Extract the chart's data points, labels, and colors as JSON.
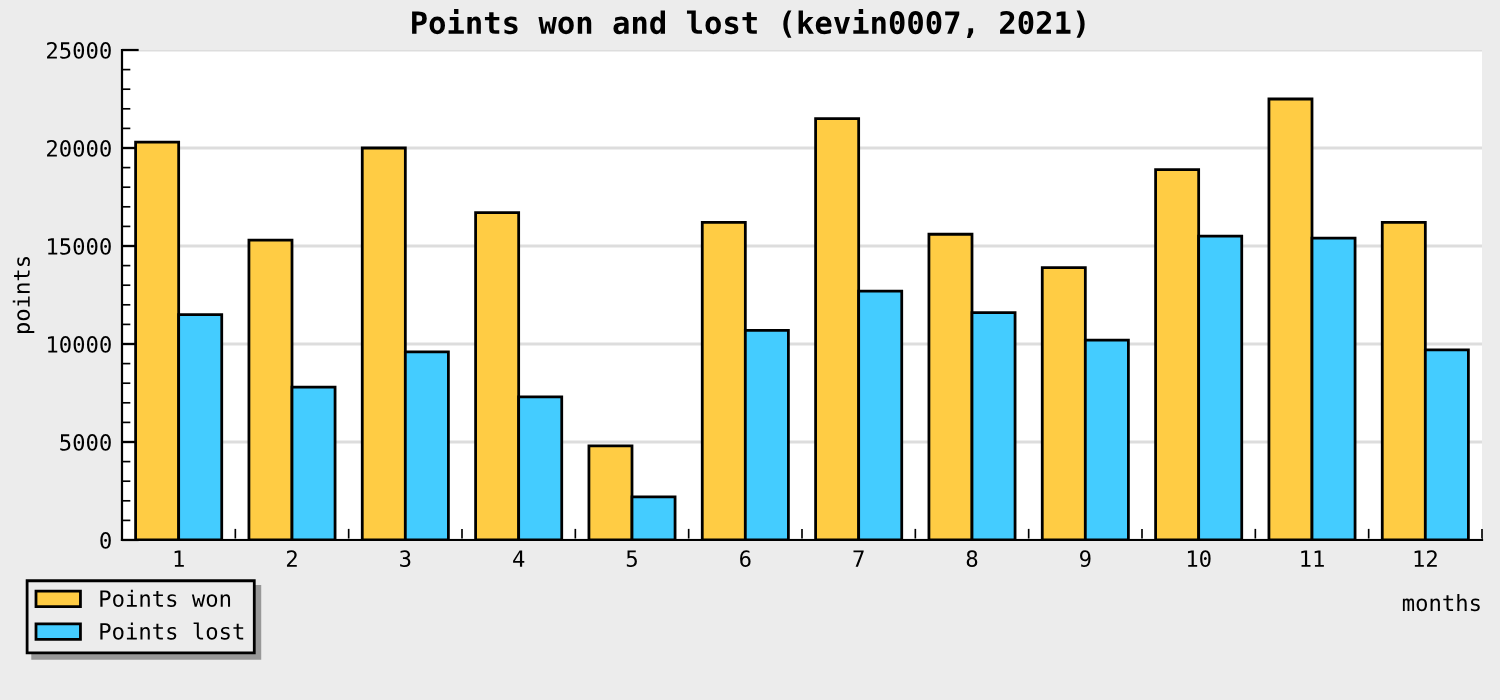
{
  "chart_data": {
    "type": "bar",
    "title": "Points won and lost (kevin0007, 2021)",
    "xlabel": "months",
    "ylabel": "points",
    "categories": [
      "1",
      "2",
      "3",
      "4",
      "5",
      "6",
      "7",
      "8",
      "9",
      "10",
      "11",
      "12"
    ],
    "series": [
      {
        "name": "Points won",
        "color": "#ffcc44",
        "values": [
          20300,
          15300,
          20000,
          16700,
          4800,
          16200,
          21500,
          15600,
          13900,
          18900,
          22500,
          16200
        ]
      },
      {
        "name": "Points lost",
        "color": "#44ccff",
        "values": [
          11500,
          7800,
          9600,
          7300,
          2200,
          10700,
          12700,
          11600,
          10200,
          15500,
          15400,
          9700
        ]
      }
    ],
    "ylim": [
      0,
      25000
    ],
    "yticks": [
      0,
      5000,
      10000,
      15000,
      20000,
      25000
    ],
    "grid": "y",
    "legend": "bottom left"
  }
}
